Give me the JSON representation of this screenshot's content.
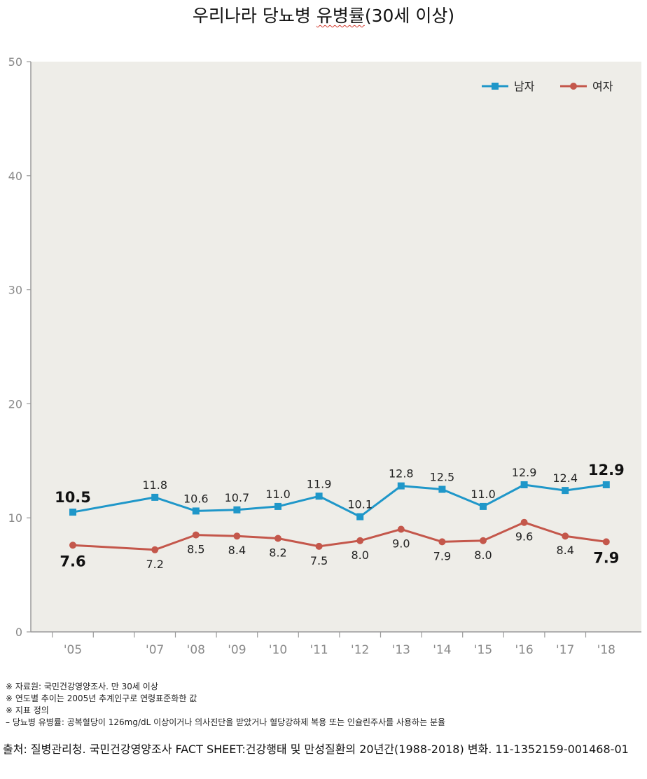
{
  "title_main": "우리나라 당뇨병 ",
  "title_underlined": "유병률",
  "title_tail": "(30세 이상)",
  "chart_data": {
    "type": "line",
    "categories": [
      "'05",
      "'07",
      "'08",
      "'09",
      "'10",
      "'11",
      "'12",
      "'13",
      "'14",
      "'15",
      "'16",
      "'17",
      "'18"
    ],
    "x_years": [
      2005,
      2007,
      2008,
      2009,
      2010,
      2011,
      2012,
      2013,
      2014,
      2015,
      2016,
      2017,
      2018
    ],
    "series": [
      {
        "name": "남자",
        "color": "#1f97c9",
        "marker": "square",
        "values": [
          10.5,
          11.8,
          10.6,
          10.7,
          11.0,
          11.9,
          10.1,
          12.8,
          12.5,
          11.0,
          12.9,
          12.4,
          12.9
        ],
        "labels": [
          "10.5",
          "11.8",
          "10.6",
          "10.7",
          "11.0",
          "11.9",
          "10.1",
          "12.8",
          "12.5",
          "11.0",
          "12.9",
          "12.4",
          "12.9"
        ]
      },
      {
        "name": "여자",
        "color": "#c4574b",
        "marker": "circle",
        "values": [
          7.6,
          7.2,
          8.5,
          8.4,
          8.2,
          7.5,
          8.0,
          9.0,
          7.9,
          8.0,
          9.6,
          8.4,
          7.9
        ],
        "labels": [
          "7.6",
          "7.2",
          "8.5",
          "8.4",
          "8.2",
          "7.5",
          "8.0",
          "9.0",
          "7.9",
          "8.0",
          "9.6",
          "8.4",
          "7.9"
        ]
      }
    ],
    "ylim": [
      0,
      50
    ],
    "yticks": [
      "0",
      "10",
      "20",
      "30",
      "40",
      "50"
    ],
    "legend_position": "top-right",
    "background": "#eeede8",
    "grid": false
  },
  "notes": [
    "※ 자료원: 국민건강영양조사. 만 30세 이상",
    "※ 연도별 추이는 2005년 추계인구로 연령표준화한 값",
    "※ 지표 정의",
    "– 당뇨병 유병률: 공복혈당이 126mg/dL 이상이거나 의사진단을 받았거나 혈당강하제 복용 또는 인슐린주사를 사용하는 분율"
  ],
  "source": "출처: 질병관리청. 국민건강영양조사 FACT SHEET:건강행태 및 만성질환의 20년간(1988-2018) 변화. 11-1352159-001468-01"
}
